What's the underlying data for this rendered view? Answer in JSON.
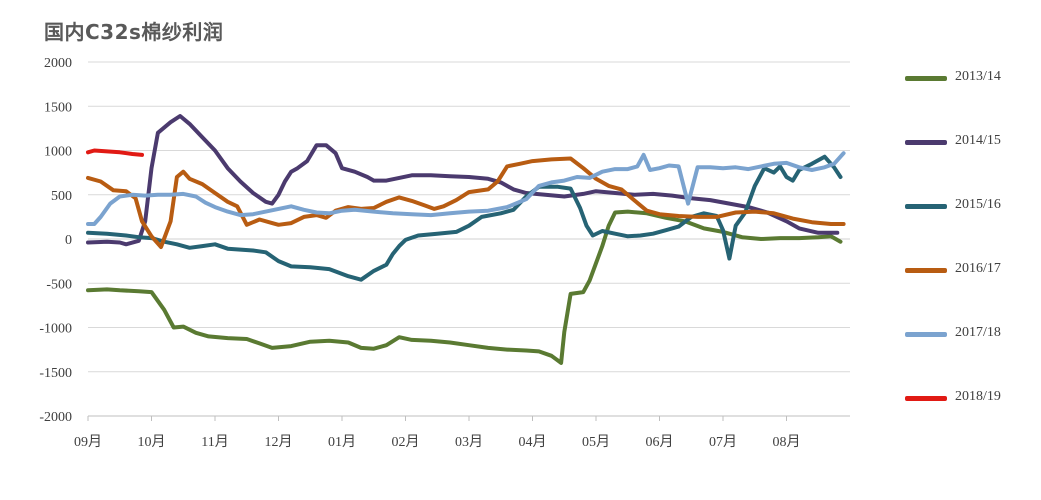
{
  "chart_data": {
    "type": "line",
    "title": "国内C32s棉纱利润",
    "xlabel": "",
    "ylabel": "",
    "ylim": [
      -2000,
      2000
    ],
    "yticks": [
      2000,
      1500,
      1000,
      500,
      0,
      -500,
      -1000,
      -1500,
      -2000
    ],
    "ytick_labels": [
      "2000",
      "1500",
      "1000",
      "500",
      "0",
      "-500",
      "-1000",
      "-1500",
      "-2000"
    ],
    "xlim": [
      0,
      12
    ],
    "x_axis_note": "months since 09月 start",
    "xtick_labels": [
      "09月",
      "10月",
      "11月",
      "12月",
      "01月",
      "02月",
      "03月",
      "04月",
      "05月",
      "06月",
      "07月",
      "08月"
    ],
    "grid": true,
    "legend_position": "right",
    "series": [
      {
        "name": "2013/14",
        "color": "#5a7a32",
        "points": [
          [
            0.0,
            -580
          ],
          [
            0.3,
            -570
          ],
          [
            0.5,
            -580
          ],
          [
            0.8,
            -590
          ],
          [
            1.0,
            -600
          ],
          [
            1.2,
            -800
          ],
          [
            1.35,
            -1000
          ],
          [
            1.5,
            -990
          ],
          [
            1.7,
            -1060
          ],
          [
            1.9,
            -1100
          ],
          [
            2.2,
            -1120
          ],
          [
            2.5,
            -1130
          ],
          [
            2.7,
            -1180
          ],
          [
            2.9,
            -1230
          ],
          [
            3.2,
            -1210
          ],
          [
            3.5,
            -1160
          ],
          [
            3.8,
            -1150
          ],
          [
            4.1,
            -1170
          ],
          [
            4.3,
            -1230
          ],
          [
            4.5,
            -1240
          ],
          [
            4.7,
            -1200
          ],
          [
            4.9,
            -1110
          ],
          [
            5.1,
            -1140
          ],
          [
            5.4,
            -1150
          ],
          [
            5.7,
            -1170
          ],
          [
            6.0,
            -1200
          ],
          [
            6.3,
            -1230
          ],
          [
            6.6,
            -1250
          ],
          [
            6.9,
            -1260
          ],
          [
            7.1,
            -1270
          ],
          [
            7.3,
            -1320
          ],
          [
            7.45,
            -1400
          ],
          [
            7.5,
            -1050
          ],
          [
            7.6,
            -620
          ],
          [
            7.8,
            -600
          ],
          [
            7.9,
            -470
          ],
          [
            8.1,
            -80
          ],
          [
            8.2,
            150
          ],
          [
            8.3,
            300
          ],
          [
            8.5,
            310
          ],
          [
            8.8,
            290
          ],
          [
            9.1,
            240
          ],
          [
            9.4,
            200
          ],
          [
            9.7,
            120
          ],
          [
            10.0,
            80
          ],
          [
            10.3,
            20
          ],
          [
            10.6,
            0
          ],
          [
            10.9,
            10
          ],
          [
            11.2,
            10
          ],
          [
            11.5,
            20
          ],
          [
            11.7,
            30
          ],
          [
            11.85,
            -30
          ]
        ]
      },
      {
        "name": "2014/15",
        "color": "#4b3a6e",
        "points": [
          [
            0.0,
            -40
          ],
          [
            0.3,
            -30
          ],
          [
            0.5,
            -40
          ],
          [
            0.6,
            -60
          ],
          [
            0.8,
            -20
          ],
          [
            0.9,
            200
          ],
          [
            1.0,
            800
          ],
          [
            1.1,
            1200
          ],
          [
            1.3,
            1320
          ],
          [
            1.45,
            1390
          ],
          [
            1.6,
            1300
          ],
          [
            1.8,
            1150
          ],
          [
            2.0,
            1000
          ],
          [
            2.2,
            800
          ],
          [
            2.4,
            650
          ],
          [
            2.6,
            520
          ],
          [
            2.8,
            420
          ],
          [
            2.9,
            400
          ],
          [
            3.0,
            500
          ],
          [
            3.1,
            650
          ],
          [
            3.2,
            760
          ],
          [
            3.3,
            800
          ],
          [
            3.45,
            880
          ],
          [
            3.6,
            1060
          ],
          [
            3.75,
            1060
          ],
          [
            3.9,
            970
          ],
          [
            4.0,
            800
          ],
          [
            4.2,
            760
          ],
          [
            4.4,
            700
          ],
          [
            4.5,
            660
          ],
          [
            4.7,
            660
          ],
          [
            4.9,
            690
          ],
          [
            5.1,
            720
          ],
          [
            5.4,
            720
          ],
          [
            5.7,
            710
          ],
          [
            6.0,
            700
          ],
          [
            6.3,
            680
          ],
          [
            6.5,
            640
          ],
          [
            6.7,
            560
          ],
          [
            6.9,
            520
          ],
          [
            7.2,
            500
          ],
          [
            7.5,
            480
          ],
          [
            7.8,
            510
          ],
          [
            8.0,
            540
          ],
          [
            8.3,
            520
          ],
          [
            8.6,
            500
          ],
          [
            8.9,
            510
          ],
          [
            9.2,
            490
          ],
          [
            9.5,
            460
          ],
          [
            9.8,
            440
          ],
          [
            10.1,
            400
          ],
          [
            10.4,
            360
          ],
          [
            10.7,
            300
          ],
          [
            11.0,
            200
          ],
          [
            11.2,
            120
          ],
          [
            11.5,
            70
          ],
          [
            11.8,
            70
          ]
        ]
      },
      {
        "name": "2015/16",
        "color": "#266374",
        "points": [
          [
            0.0,
            70
          ],
          [
            0.3,
            60
          ],
          [
            0.6,
            40
          ],
          [
            0.8,
            20
          ],
          [
            1.0,
            10
          ],
          [
            1.2,
            -30
          ],
          [
            1.4,
            -60
          ],
          [
            1.6,
            -100
          ],
          [
            1.8,
            -80
          ],
          [
            2.0,
            -60
          ],
          [
            2.2,
            -110
          ],
          [
            2.4,
            -120
          ],
          [
            2.6,
            -130
          ],
          [
            2.8,
            -150
          ],
          [
            3.0,
            -250
          ],
          [
            3.2,
            -310
          ],
          [
            3.5,
            -320
          ],
          [
            3.8,
            -340
          ],
          [
            4.1,
            -420
          ],
          [
            4.3,
            -460
          ],
          [
            4.5,
            -360
          ],
          [
            4.7,
            -290
          ],
          [
            4.8,
            -170
          ],
          [
            4.9,
            -80
          ],
          [
            5.0,
            -10
          ],
          [
            5.2,
            40
          ],
          [
            5.5,
            60
          ],
          [
            5.8,
            80
          ],
          [
            6.0,
            150
          ],
          [
            6.2,
            250
          ],
          [
            6.5,
            290
          ],
          [
            6.7,
            330
          ],
          [
            6.9,
            480
          ],
          [
            7.1,
            590
          ],
          [
            7.4,
            590
          ],
          [
            7.6,
            570
          ],
          [
            7.75,
            350
          ],
          [
            7.85,
            150
          ],
          [
            7.95,
            40
          ],
          [
            8.1,
            90
          ],
          [
            8.3,
            60
          ],
          [
            8.5,
            30
          ],
          [
            8.7,
            40
          ],
          [
            8.9,
            60
          ],
          [
            9.1,
            100
          ],
          [
            9.3,
            140
          ],
          [
            9.5,
            250
          ],
          [
            9.7,
            290
          ],
          [
            9.9,
            260
          ],
          [
            10.0,
            100
          ],
          [
            10.1,
            -220
          ],
          [
            10.2,
            150
          ],
          [
            10.35,
            300
          ],
          [
            10.5,
            600
          ],
          [
            10.65,
            800
          ],
          [
            10.8,
            750
          ],
          [
            10.9,
            820
          ],
          [
            11.0,
            700
          ],
          [
            11.1,
            660
          ],
          [
            11.2,
            780
          ],
          [
            11.4,
            850
          ],
          [
            11.6,
            930
          ],
          [
            11.75,
            810
          ],
          [
            11.85,
            700
          ]
        ]
      },
      {
        "name": "2016/17",
        "color": "#b85c12",
        "points": [
          [
            0.0,
            690
          ],
          [
            0.2,
            650
          ],
          [
            0.4,
            550
          ],
          [
            0.6,
            540
          ],
          [
            0.75,
            460
          ],
          [
            0.85,
            200
          ],
          [
            1.0,
            30
          ],
          [
            1.15,
            -90
          ],
          [
            1.3,
            200
          ],
          [
            1.4,
            700
          ],
          [
            1.5,
            760
          ],
          [
            1.6,
            680
          ],
          [
            1.8,
            620
          ],
          [
            2.0,
            520
          ],
          [
            2.2,
            420
          ],
          [
            2.35,
            370
          ],
          [
            2.5,
            160
          ],
          [
            2.7,
            220
          ],
          [
            2.9,
            180
          ],
          [
            3.0,
            160
          ],
          [
            3.2,
            180
          ],
          [
            3.4,
            250
          ],
          [
            3.6,
            270
          ],
          [
            3.75,
            240
          ],
          [
            3.9,
            320
          ],
          [
            4.1,
            360
          ],
          [
            4.3,
            340
          ],
          [
            4.5,
            350
          ],
          [
            4.7,
            420
          ],
          [
            4.9,
            470
          ],
          [
            5.1,
            430
          ],
          [
            5.3,
            380
          ],
          [
            5.45,
            340
          ],
          [
            5.6,
            370
          ],
          [
            5.8,
            440
          ],
          [
            6.0,
            530
          ],
          [
            6.3,
            560
          ],
          [
            6.45,
            650
          ],
          [
            6.6,
            820
          ],
          [
            6.8,
            850
          ],
          [
            7.0,
            880
          ],
          [
            7.3,
            900
          ],
          [
            7.6,
            910
          ],
          [
            7.8,
            800
          ],
          [
            8.0,
            680
          ],
          [
            8.2,
            600
          ],
          [
            8.4,
            560
          ],
          [
            8.6,
            440
          ],
          [
            8.8,
            320
          ],
          [
            9.0,
            280
          ],
          [
            9.3,
            260
          ],
          [
            9.6,
            250
          ],
          [
            9.9,
            250
          ],
          [
            10.2,
            300
          ],
          [
            10.5,
            310
          ],
          [
            10.8,
            290
          ],
          [
            11.1,
            230
          ],
          [
            11.4,
            190
          ],
          [
            11.7,
            170
          ],
          [
            11.9,
            170
          ]
        ]
      },
      {
        "name": "2017/18",
        "color": "#7ba3cf",
        "points": [
          [
            0.0,
            170
          ],
          [
            0.1,
            170
          ],
          [
            0.2,
            250
          ],
          [
            0.35,
            400
          ],
          [
            0.5,
            480
          ],
          [
            0.7,
            500
          ],
          [
            0.9,
            490
          ],
          [
            1.1,
            500
          ],
          [
            1.3,
            500
          ],
          [
            1.5,
            510
          ],
          [
            1.7,
            480
          ],
          [
            1.85,
            410
          ],
          [
            2.0,
            360
          ],
          [
            2.2,
            310
          ],
          [
            2.4,
            270
          ],
          [
            2.6,
            280
          ],
          [
            2.8,
            310
          ],
          [
            3.0,
            340
          ],
          [
            3.2,
            370
          ],
          [
            3.4,
            330
          ],
          [
            3.6,
            300
          ],
          [
            3.8,
            290
          ],
          [
            4.0,
            320
          ],
          [
            4.2,
            330
          ],
          [
            4.5,
            310
          ],
          [
            4.8,
            290
          ],
          [
            5.1,
            280
          ],
          [
            5.4,
            270
          ],
          [
            5.7,
            290
          ],
          [
            6.0,
            310
          ],
          [
            6.3,
            320
          ],
          [
            6.6,
            360
          ],
          [
            6.9,
            450
          ],
          [
            7.1,
            600
          ],
          [
            7.3,
            640
          ],
          [
            7.5,
            660
          ],
          [
            7.7,
            700
          ],
          [
            7.9,
            690
          ],
          [
            8.1,
            760
          ],
          [
            8.3,
            790
          ],
          [
            8.5,
            790
          ],
          [
            8.65,
            820
          ],
          [
            8.75,
            950
          ],
          [
            8.85,
            780
          ],
          [
            9.0,
            800
          ],
          [
            9.15,
            830
          ],
          [
            9.3,
            820
          ],
          [
            9.45,
            400
          ],
          [
            9.6,
            810
          ],
          [
            9.8,
            810
          ],
          [
            10.0,
            800
          ],
          [
            10.2,
            810
          ],
          [
            10.4,
            790
          ],
          [
            10.6,
            820
          ],
          [
            10.8,
            850
          ],
          [
            11.0,
            860
          ],
          [
            11.2,
            810
          ],
          [
            11.4,
            780
          ],
          [
            11.6,
            810
          ],
          [
            11.75,
            850
          ],
          [
            11.9,
            970
          ]
        ]
      },
      {
        "name": "2018/19",
        "color": "#e11a14",
        "points": [
          [
            0.0,
            980
          ],
          [
            0.1,
            1000
          ],
          [
            0.3,
            990
          ],
          [
            0.5,
            980
          ],
          [
            0.7,
            960
          ],
          [
            0.85,
            950
          ]
        ]
      }
    ]
  }
}
